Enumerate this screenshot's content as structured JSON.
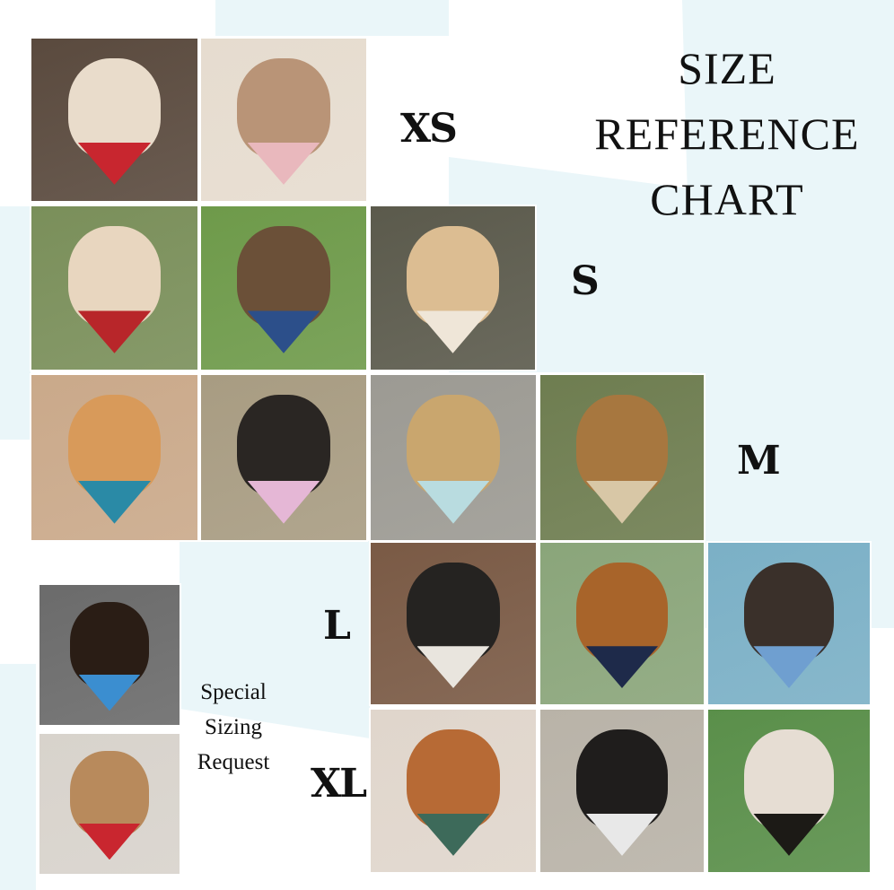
{
  "title": {
    "line1": "SIZE",
    "line2": "REFERENCE",
    "line3": "CHART"
  },
  "sizes": {
    "xs": "XS",
    "s": "S",
    "m": "M",
    "l": "L",
    "xl": "XL"
  },
  "special": {
    "line1": "Special",
    "line2": "Sizing",
    "line3": "Request"
  },
  "colors": {
    "background_tint": "#eaf6f9",
    "text": "#111111"
  },
  "photos": [
    {
      "size": "XS",
      "subject": "cat-photo",
      "bg": "#5a4a3e",
      "pet": "#e9dccb",
      "bandana": "#c8262f"
    },
    {
      "size": "XS",
      "subject": "two-cats-photo",
      "bg": "#e6dccf",
      "pet": "#b99477",
      "bandana": "#e9b8bd"
    },
    {
      "size": "S",
      "subject": "dog-photo",
      "bg": "#7a8f5a",
      "pet": "#e8d6bf",
      "bandana": "#b8262a"
    },
    {
      "size": "S",
      "subject": "dog-photo",
      "bg": "#6e9a4a",
      "pet": "#6b5038",
      "bandana": "#2c4f8a"
    },
    {
      "size": "S",
      "subject": "dog-photo",
      "bg": "#5b5a4c",
      "pet": "#dcbd92",
      "bandana": "#efe6d8"
    },
    {
      "size": "M",
      "subject": "dog-photo",
      "bg": "#caa98a",
      "pet": "#d89a5a",
      "bandana": "#2a8aa6"
    },
    {
      "size": "M",
      "subject": "dog-photo",
      "bg": "#a89c82",
      "pet": "#2a2623",
      "bandana": "#e5b7d6"
    },
    {
      "size": "M",
      "subject": "dog-photo",
      "bg": "#9c9a93",
      "pet": "#c9a66e",
      "bandana": "#b9dce0"
    },
    {
      "size": "M",
      "subject": "dog-photo",
      "bg": "#6e7d50",
      "pet": "#a7773f",
      "bandana": "#d8c7a6"
    },
    {
      "size": "L",
      "subject": "dog-photo",
      "bg": "#7a5a45",
      "pet": "#252321",
      "bandana": "#e9e5de"
    },
    {
      "size": "L",
      "subject": "dog-photo",
      "bg": "#8aa57a",
      "pet": "#a8642a",
      "bandana": "#1e2a4a"
    },
    {
      "size": "L",
      "subject": "dog-photo",
      "bg": "#7bb0c6",
      "pet": "#3a302a",
      "bandana": "#6f9fd0"
    },
    {
      "size": "XL",
      "subject": "dog-photo",
      "bg": "#e0d6cc",
      "pet": "#b76a35",
      "bandana": "#3d6a5a"
    },
    {
      "size": "XL",
      "subject": "dog-photo",
      "bg": "#b9b3a8",
      "pet": "#1f1d1c",
      "bandana": "#e8e8e8"
    },
    {
      "size": "XL",
      "subject": "dog-photo",
      "bg": "#5a8f4a",
      "pet": "#e6ddd3",
      "bandana": "#1c1a16"
    },
    {
      "size": "Special",
      "subject": "dachshund-photo",
      "bg": "#6b6b6b",
      "pet": "#2a1d15",
      "bandana": "#3b8ed0"
    },
    {
      "size": "Special",
      "subject": "dachshund-photo",
      "bg": "#d8d3cc",
      "pet": "#b88a5c",
      "bandana": "#c9262f"
    }
  ]
}
